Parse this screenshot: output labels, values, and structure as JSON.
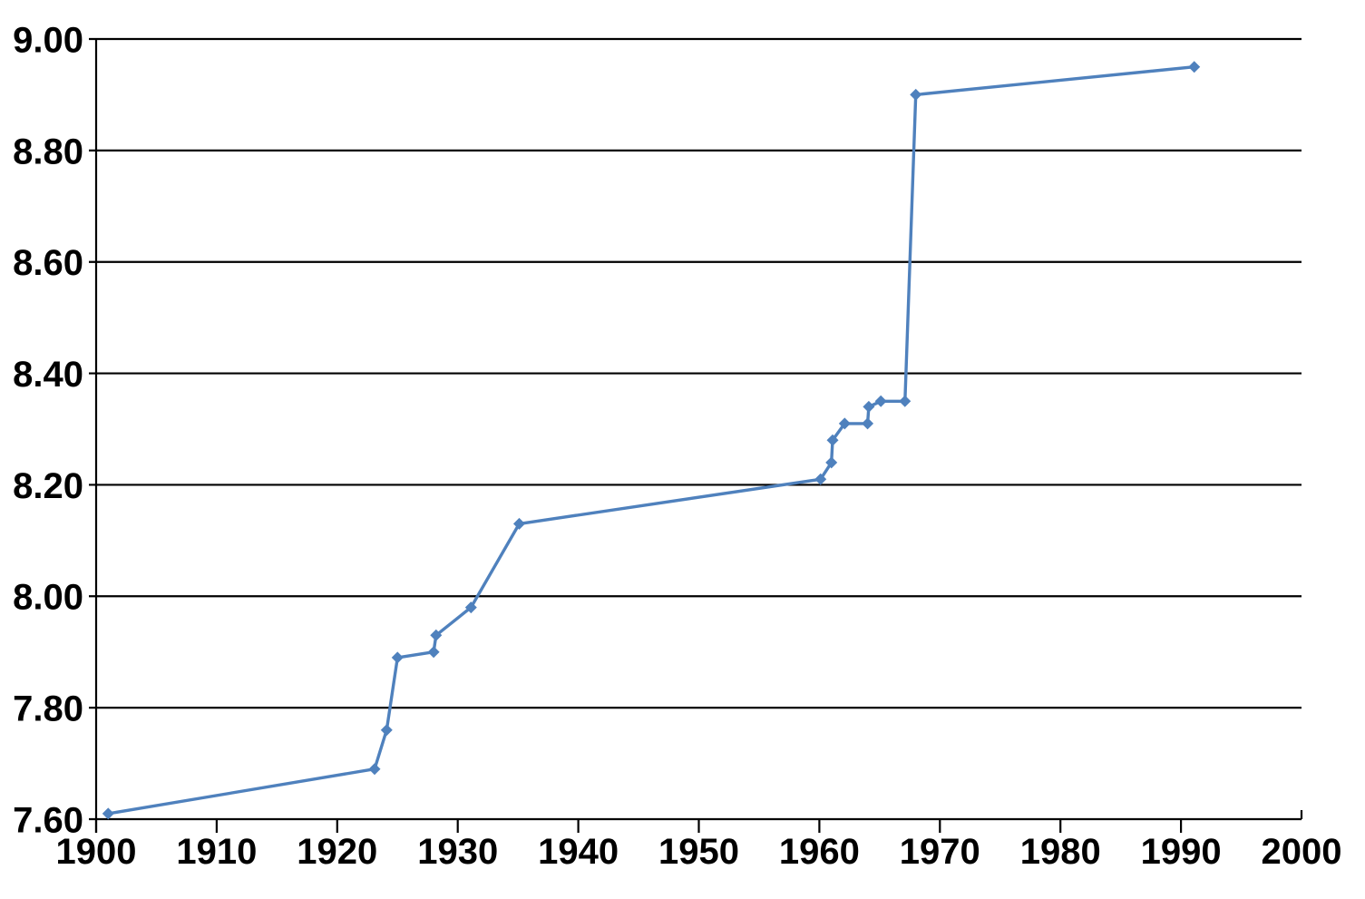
{
  "chart_data": {
    "type": "line",
    "title": "",
    "xlabel": "",
    "ylabel": "",
    "legend": "none",
    "grid": "horizontal",
    "marker": "diamond",
    "series": [
      {
        "name": "",
        "x": [
          1901,
          1923.1,
          1924.1,
          1925,
          1928,
          1928.2,
          1931.1,
          1935.1,
          1960.1,
          1961,
          1961.1,
          1962.1,
          1964,
          1964.1,
          1965.1,
          1967.1,
          1968,
          1991.1
        ],
        "y": [
          7.61,
          7.69,
          7.76,
          7.89,
          7.9,
          7.93,
          7.98,
          8.13,
          8.21,
          8.24,
          8.28,
          8.31,
          8.31,
          8.34,
          8.35,
          8.35,
          8.9,
          8.95
        ]
      }
    ],
    "xlim": [
      1900,
      2000
    ],
    "ylim": [
      7.6,
      9.0
    ],
    "x_ticks": [
      {
        "value": 1900,
        "label": "1900"
      },
      {
        "value": 1910,
        "label": "1910"
      },
      {
        "value": 1920,
        "label": "1920"
      },
      {
        "value": 1930,
        "label": "1930"
      },
      {
        "value": 1940,
        "label": "1940"
      },
      {
        "value": 1950,
        "label": "1950"
      },
      {
        "value": 1960,
        "label": "1960"
      },
      {
        "value": 1970,
        "label": "1970"
      },
      {
        "value": 1980,
        "label": "1980"
      },
      {
        "value": 1990,
        "label": "1990"
      },
      {
        "value": 2000,
        "label": "2000"
      }
    ],
    "y_ticks": [
      {
        "value": 7.6,
        "label": "7.60"
      },
      {
        "value": 7.8,
        "label": "7.80"
      },
      {
        "value": 8.0,
        "label": "8.00"
      },
      {
        "value": 8.2,
        "label": "8.20"
      },
      {
        "value": 8.4,
        "label": "8.40"
      },
      {
        "value": 8.6,
        "label": "8.60"
      },
      {
        "value": 8.8,
        "label": "8.80"
      },
      {
        "value": 9.0,
        "label": "9.00"
      }
    ],
    "colors": {
      "line": "#4F81BD",
      "marker": "#4F81BD",
      "grid": "#000000",
      "axis": "#000000",
      "text": "#000000",
      "background": "#FFFFFF"
    }
  }
}
